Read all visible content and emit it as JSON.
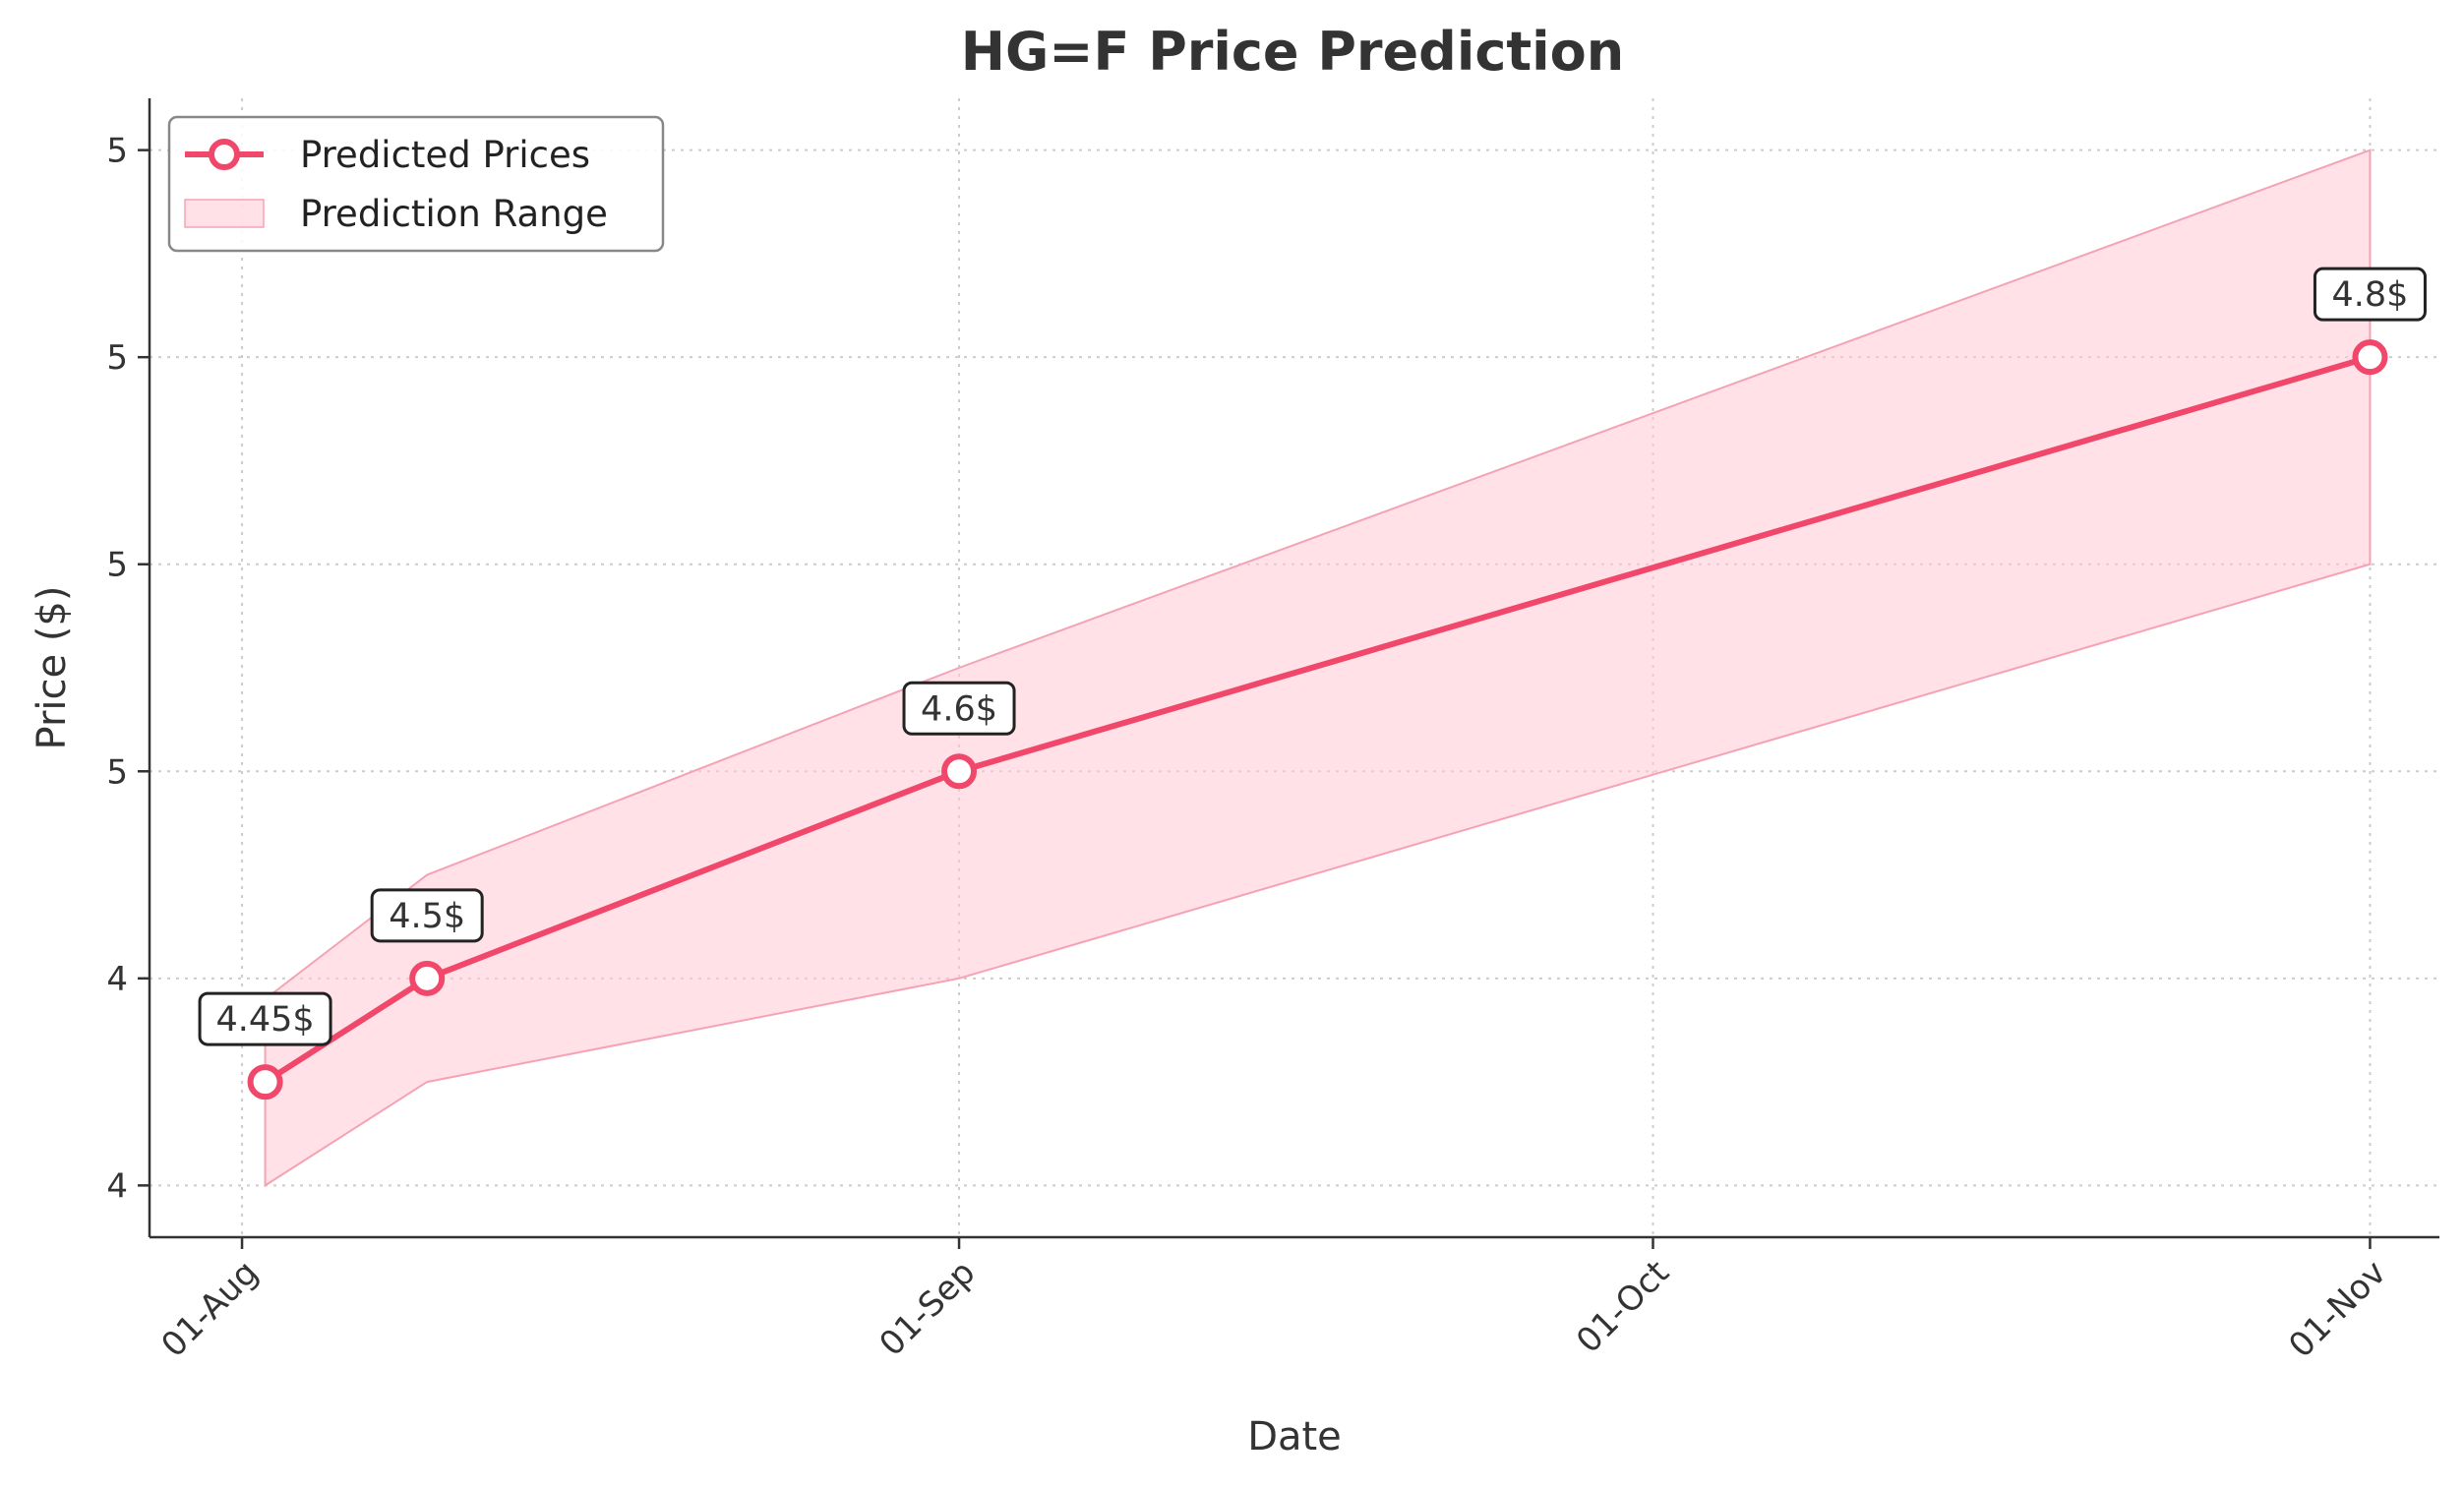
{
  "chart_data": {
    "type": "line",
    "title": "HG=F Price Prediction",
    "xlabel": "Date",
    "ylabel": "Price ($)",
    "x_ticks": [
      {
        "date": "2024-08-01",
        "label": "01-Aug"
      },
      {
        "date": "2024-09-01",
        "label": "01-Sep"
      },
      {
        "date": "2024-10-01",
        "label": "01-Oct"
      },
      {
        "date": "2024-11-01",
        "label": "01-Nov"
      }
    ],
    "y_ticks": [
      {
        "value": 4.4,
        "label": "4"
      },
      {
        "value": 4.5,
        "label": "4"
      },
      {
        "value": 4.6,
        "label": "5"
      },
      {
        "value": 4.7,
        "label": "5"
      },
      {
        "value": 4.8,
        "label": "5"
      },
      {
        "value": 4.9,
        "label": "5"
      }
    ],
    "xlim": [
      "2024-07-28",
      "2024-11-04"
    ],
    "ylim": [
      4.375,
      4.925
    ],
    "grid": true,
    "legend_position": "top-left",
    "series": [
      {
        "name": "Predicted Prices",
        "color": "#f0476a",
        "points": [
          {
            "date": "2024-08-02",
            "value": 4.45,
            "label": "4.45$"
          },
          {
            "date": "2024-08-09",
            "value": 4.5,
            "label": "4.5$"
          },
          {
            "date": "2024-09-01",
            "value": 4.6,
            "label": "4.6$"
          },
          {
            "date": "2024-11-01",
            "value": 4.8,
            "label": "4.8$"
          }
        ]
      }
    ],
    "range": {
      "name": "Prediction Range",
      "color": "#ffc8d3",
      "lower": [
        4.4,
        4.45,
        4.5,
        4.7
      ],
      "upper": [
        4.49,
        4.55,
        4.65,
        4.9
      ]
    }
  }
}
